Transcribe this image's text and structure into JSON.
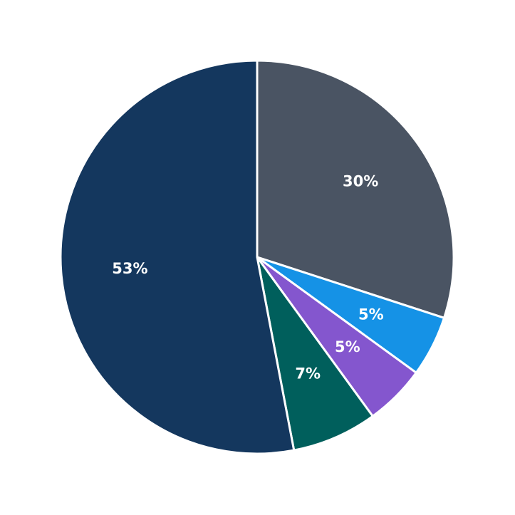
{
  "chart_data": {
    "type": "pie",
    "values": [
      30,
      5,
      5,
      7,
      53
    ],
    "value_labels": [
      "30%",
      "5%",
      "5%",
      "7%",
      "53%"
    ],
    "colors": [
      "#4a5463",
      "#1592e6",
      "#8456ce",
      "#005f5c",
      "#14375e"
    ]
  }
}
